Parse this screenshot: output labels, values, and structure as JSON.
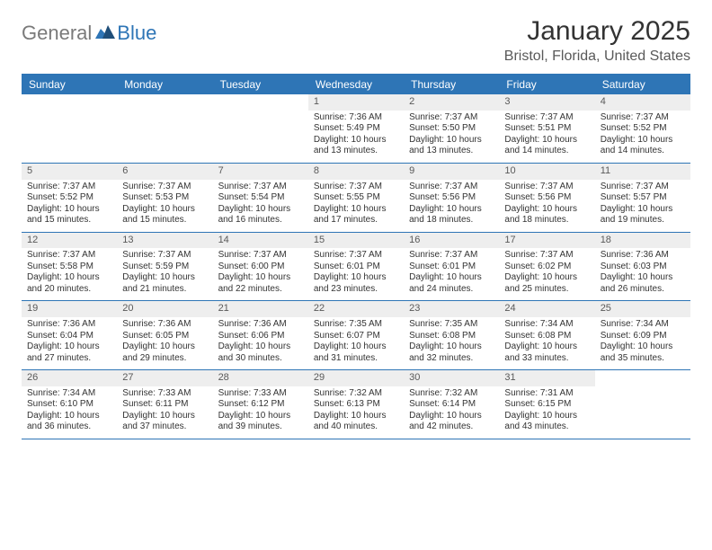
{
  "logo": {
    "text1": "General",
    "text2": "Blue"
  },
  "title": "January 2025",
  "location": "Bristol, Florida, United States",
  "colors": {
    "header_bg": "#2e75b6",
    "header_text": "#ffffff",
    "daynum_bg": "#eeeeee",
    "border": "#2e75b6",
    "logo_gray": "#7a7a7a",
    "logo_blue": "#2e75b6"
  },
  "dow": [
    "Sunday",
    "Monday",
    "Tuesday",
    "Wednesday",
    "Thursday",
    "Friday",
    "Saturday"
  ],
  "weeks": [
    [
      null,
      null,
      null,
      {
        "n": "1",
        "sunrise": "7:36 AM",
        "sunset": "5:49 PM",
        "daylight": "10 hours and 13 minutes."
      },
      {
        "n": "2",
        "sunrise": "7:37 AM",
        "sunset": "5:50 PM",
        "daylight": "10 hours and 13 minutes."
      },
      {
        "n": "3",
        "sunrise": "7:37 AM",
        "sunset": "5:51 PM",
        "daylight": "10 hours and 14 minutes."
      },
      {
        "n": "4",
        "sunrise": "7:37 AM",
        "sunset": "5:52 PM",
        "daylight": "10 hours and 14 minutes."
      }
    ],
    [
      {
        "n": "5",
        "sunrise": "7:37 AM",
        "sunset": "5:52 PM",
        "daylight": "10 hours and 15 minutes."
      },
      {
        "n": "6",
        "sunrise": "7:37 AM",
        "sunset": "5:53 PM",
        "daylight": "10 hours and 15 minutes."
      },
      {
        "n": "7",
        "sunrise": "7:37 AM",
        "sunset": "5:54 PM",
        "daylight": "10 hours and 16 minutes."
      },
      {
        "n": "8",
        "sunrise": "7:37 AM",
        "sunset": "5:55 PM",
        "daylight": "10 hours and 17 minutes."
      },
      {
        "n": "9",
        "sunrise": "7:37 AM",
        "sunset": "5:56 PM",
        "daylight": "10 hours and 18 minutes."
      },
      {
        "n": "10",
        "sunrise": "7:37 AM",
        "sunset": "5:56 PM",
        "daylight": "10 hours and 18 minutes."
      },
      {
        "n": "11",
        "sunrise": "7:37 AM",
        "sunset": "5:57 PM",
        "daylight": "10 hours and 19 minutes."
      }
    ],
    [
      {
        "n": "12",
        "sunrise": "7:37 AM",
        "sunset": "5:58 PM",
        "daylight": "10 hours and 20 minutes."
      },
      {
        "n": "13",
        "sunrise": "7:37 AM",
        "sunset": "5:59 PM",
        "daylight": "10 hours and 21 minutes."
      },
      {
        "n": "14",
        "sunrise": "7:37 AM",
        "sunset": "6:00 PM",
        "daylight": "10 hours and 22 minutes."
      },
      {
        "n": "15",
        "sunrise": "7:37 AM",
        "sunset": "6:01 PM",
        "daylight": "10 hours and 23 minutes."
      },
      {
        "n": "16",
        "sunrise": "7:37 AM",
        "sunset": "6:01 PM",
        "daylight": "10 hours and 24 minutes."
      },
      {
        "n": "17",
        "sunrise": "7:37 AM",
        "sunset": "6:02 PM",
        "daylight": "10 hours and 25 minutes."
      },
      {
        "n": "18",
        "sunrise": "7:36 AM",
        "sunset": "6:03 PM",
        "daylight": "10 hours and 26 minutes."
      }
    ],
    [
      {
        "n": "19",
        "sunrise": "7:36 AM",
        "sunset": "6:04 PM",
        "daylight": "10 hours and 27 minutes."
      },
      {
        "n": "20",
        "sunrise": "7:36 AM",
        "sunset": "6:05 PM",
        "daylight": "10 hours and 29 minutes."
      },
      {
        "n": "21",
        "sunrise": "7:36 AM",
        "sunset": "6:06 PM",
        "daylight": "10 hours and 30 minutes."
      },
      {
        "n": "22",
        "sunrise": "7:35 AM",
        "sunset": "6:07 PM",
        "daylight": "10 hours and 31 minutes."
      },
      {
        "n": "23",
        "sunrise": "7:35 AM",
        "sunset": "6:08 PM",
        "daylight": "10 hours and 32 minutes."
      },
      {
        "n": "24",
        "sunrise": "7:34 AM",
        "sunset": "6:08 PM",
        "daylight": "10 hours and 33 minutes."
      },
      {
        "n": "25",
        "sunrise": "7:34 AM",
        "sunset": "6:09 PM",
        "daylight": "10 hours and 35 minutes."
      }
    ],
    [
      {
        "n": "26",
        "sunrise": "7:34 AM",
        "sunset": "6:10 PM",
        "daylight": "10 hours and 36 minutes."
      },
      {
        "n": "27",
        "sunrise": "7:33 AM",
        "sunset": "6:11 PM",
        "daylight": "10 hours and 37 minutes."
      },
      {
        "n": "28",
        "sunrise": "7:33 AM",
        "sunset": "6:12 PM",
        "daylight": "10 hours and 39 minutes."
      },
      {
        "n": "29",
        "sunrise": "7:32 AM",
        "sunset": "6:13 PM",
        "daylight": "10 hours and 40 minutes."
      },
      {
        "n": "30",
        "sunrise": "7:32 AM",
        "sunset": "6:14 PM",
        "daylight": "10 hours and 42 minutes."
      },
      {
        "n": "31",
        "sunrise": "7:31 AM",
        "sunset": "6:15 PM",
        "daylight": "10 hours and 43 minutes."
      },
      null
    ]
  ],
  "labels": {
    "sunrise": "Sunrise:",
    "sunset": "Sunset:",
    "daylight": "Daylight:"
  }
}
